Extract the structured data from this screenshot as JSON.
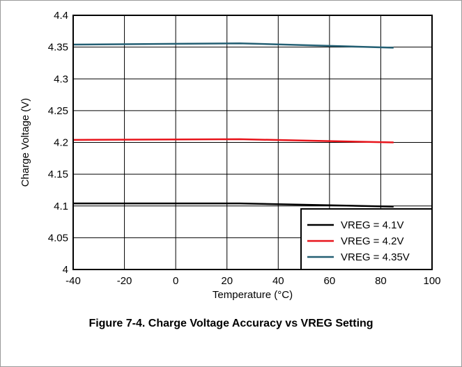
{
  "chart_data": {
    "type": "line",
    "caption": "Figure 7-4. Charge Voltage Accuracy vs VREG Setting",
    "xlabel": "Temperature (°C)",
    "ylabel": "Charge Voltage (V)",
    "xlim": [
      -40,
      100
    ],
    "ylim": [
      4.0,
      4.4
    ],
    "xticks": [
      "-40",
      "-20",
      "0",
      "20",
      "40",
      "60",
      "80",
      "100"
    ],
    "yticks": [
      "4",
      "4.05",
      "4.1",
      "4.15",
      "4.2",
      "4.25",
      "4.3",
      "4.35",
      "4.4"
    ],
    "grid": true,
    "legend_position": "bottom-right",
    "series": [
      {
        "name": "VREG = 4.1V",
        "color": "#000000",
        "x": [
          -40,
          25,
          85
        ],
        "y": [
          4.104,
          4.104,
          4.099
        ]
      },
      {
        "name": "VREG = 4.2V",
        "color": "#e8141b",
        "x": [
          -40,
          25,
          85
        ],
        "y": [
          4.204,
          4.205,
          4.2
        ]
      },
      {
        "name": "VREG = 4.35V",
        "color": "#235f73",
        "x": [
          -40,
          25,
          85
        ],
        "y": [
          4.354,
          4.356,
          4.349
        ]
      }
    ]
  }
}
